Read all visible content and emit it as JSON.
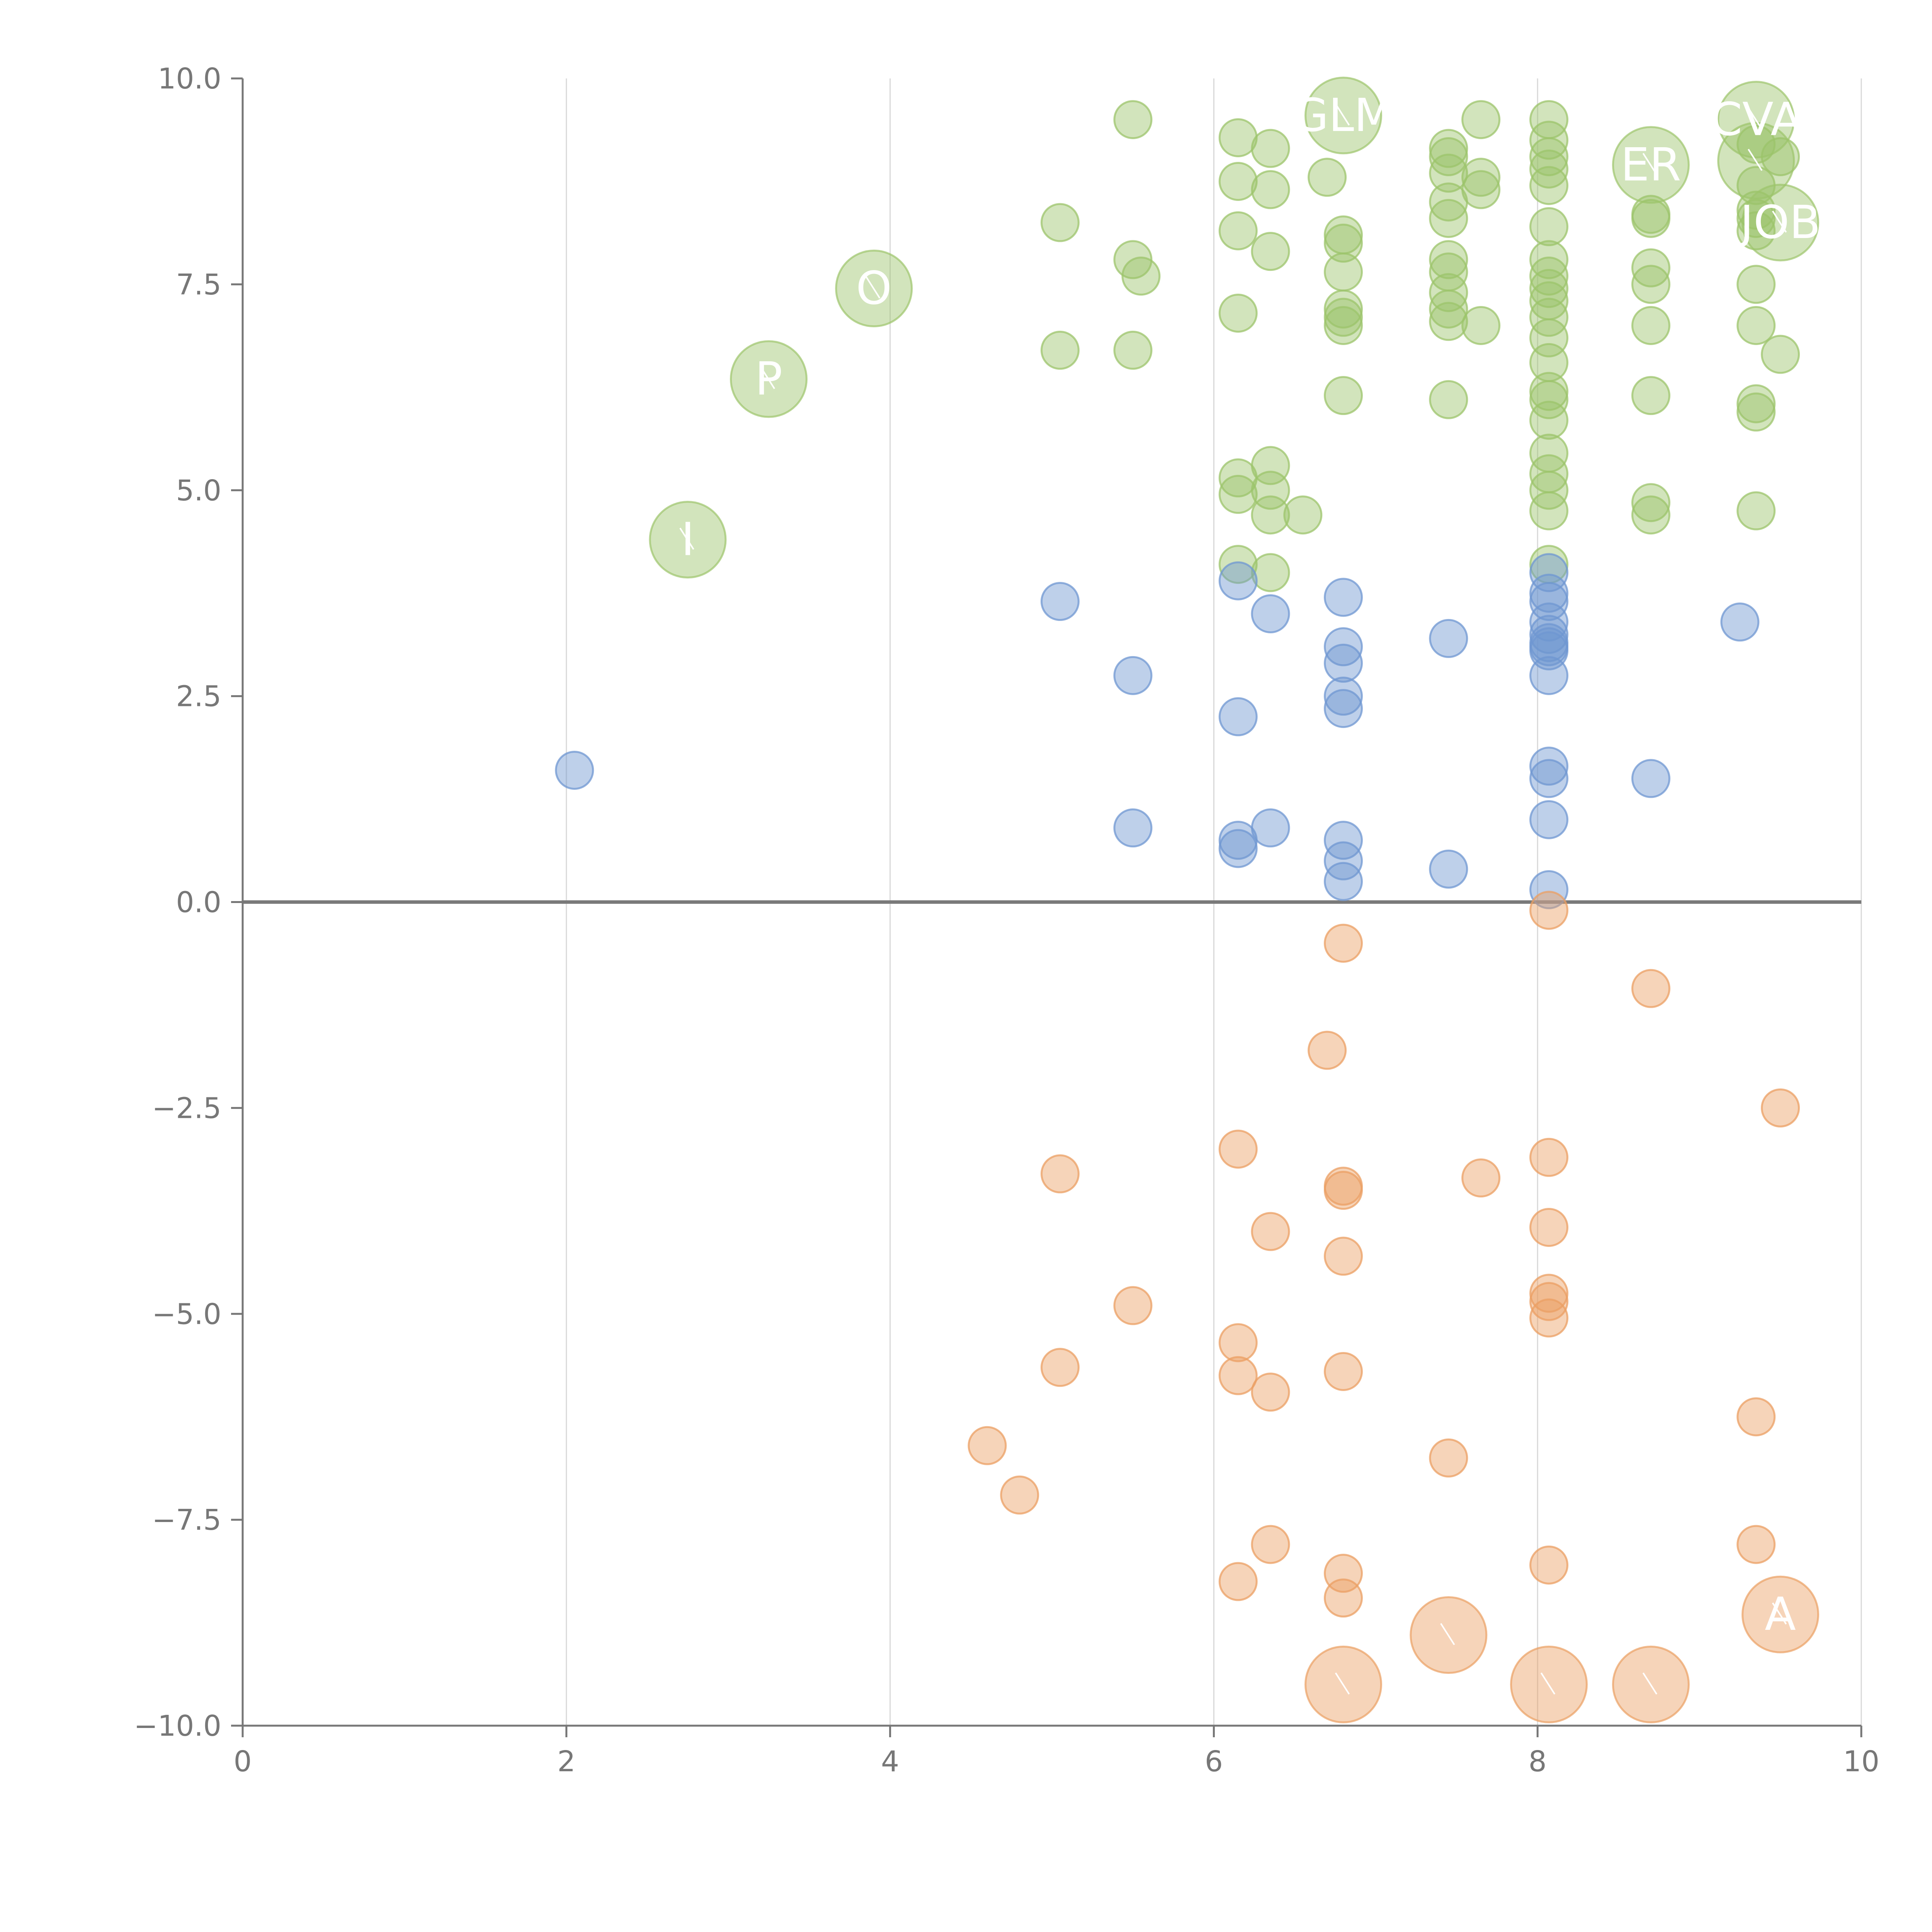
{
  "chart_data": {
    "type": "scatter",
    "title": "",
    "xlabel": "",
    "ylabel": "",
    "xlim": [
      0,
      10
    ],
    "ylim": [
      -10,
      10
    ],
    "x_ticks": [
      0,
      2,
      4,
      6,
      8,
      10
    ],
    "x_tick_labels": [
      "0",
      "2",
      "4",
      "6",
      "8",
      "10"
    ],
    "y_ticks": [
      10,
      7.5,
      5,
      2.5,
      0,
      -2.5,
      -5,
      -7.5,
      -10
    ],
    "y_tick_labels": [
      "10.0",
      "7.5",
      "5.0",
      "2.5",
      "0.0",
      "−2.5",
      "−5.0",
      "−7.5",
      "−10.0"
    ],
    "vertical_grid": true,
    "zero_line": true,
    "colors": {
      "green": "#9cc46b",
      "blue": "#6f97d1",
      "orange": "#eb9f63",
      "zero_line": "#7a7a7a",
      "grid": "#d8d8d8",
      "axis": "#777777"
    },
    "series": [
      {
        "color": "green",
        "points": [
          [
            5.5,
            9.5
          ],
          [
            6.15,
            9.28
          ],
          [
            6.35,
            9.15
          ],
          [
            6.7,
            8.8
          ],
          [
            7.45,
            9.15
          ],
          [
            7.45,
            9.05
          ],
          [
            7.45,
            8.85
          ],
          [
            7.65,
            9.5
          ],
          [
            7.65,
            8.8
          ],
          [
            7.65,
            8.65
          ],
          [
            8.07,
            9.5
          ],
          [
            8.07,
            9.25
          ],
          [
            8.07,
            9.05
          ],
          [
            8.07,
            8.9
          ],
          [
            8.07,
            8.7
          ],
          [
            8.07,
            8.2
          ],
          [
            8.07,
            7.8
          ],
          [
            8.07,
            7.6
          ],
          [
            8.07,
            7.45
          ],
          [
            8.07,
            7.3
          ],
          [
            8.07,
            7.1
          ],
          [
            8.07,
            6.85
          ],
          [
            8.07,
            6.55
          ],
          [
            8.07,
            6.2
          ],
          [
            8.07,
            6.1
          ],
          [
            8.07,
            5.85
          ],
          [
            8.07,
            5.45
          ],
          [
            8.07,
            5.2
          ],
          [
            8.07,
            5.0
          ],
          [
            8.07,
            4.75
          ],
          [
            8.07,
            4.1
          ],
          [
            6.15,
            8.75
          ],
          [
            6.35,
            8.65
          ],
          [
            6.15,
            8.15
          ],
          [
            6.35,
            7.9
          ],
          [
            5.05,
            8.25
          ],
          [
            5.5,
            7.8
          ],
          [
            5.55,
            7.6
          ],
          [
            6.15,
            7.15
          ],
          [
            5.05,
            6.7
          ],
          [
            5.5,
            6.7
          ],
          [
            6.8,
            8.1
          ],
          [
            6.8,
            8.0
          ],
          [
            6.8,
            7.65
          ],
          [
            6.8,
            7.2
          ],
          [
            6.8,
            7.1
          ],
          [
            6.8,
            7.0
          ],
          [
            6.8,
            6.15
          ],
          [
            7.45,
            8.5
          ],
          [
            7.45,
            8.3
          ],
          [
            7.45,
            7.8
          ],
          [
            7.45,
            7.65
          ],
          [
            7.45,
            7.4
          ],
          [
            7.45,
            7.2
          ],
          [
            7.45,
            7.05
          ],
          [
            7.65,
            7.0
          ],
          [
            7.45,
            6.1
          ],
          [
            8.7,
            8.35
          ],
          [
            8.7,
            8.3
          ],
          [
            8.7,
            7.7
          ],
          [
            8.7,
            7.5
          ],
          [
            8.7,
            7.0
          ],
          [
            8.7,
            6.15
          ],
          [
            9.35,
            9.2
          ],
          [
            9.35,
            8.7
          ],
          [
            9.35,
            8.4
          ],
          [
            9.35,
            8.3
          ],
          [
            9.35,
            8.15
          ],
          [
            9.35,
            7.5
          ],
          [
            9.35,
            7.0
          ],
          [
            9.35,
            6.05
          ],
          [
            9.35,
            5.95
          ],
          [
            9.5,
            6.65
          ],
          [
            9.5,
            9.05
          ],
          [
            6.15,
            5.15
          ],
          [
            6.15,
            4.95
          ],
          [
            6.35,
            5.3
          ],
          [
            6.35,
            5.0
          ],
          [
            6.35,
            4.7
          ],
          [
            6.55,
            4.7
          ],
          [
            6.15,
            4.1
          ],
          [
            6.35,
            4.0
          ],
          [
            8.7,
            4.85
          ],
          [
            8.7,
            4.7
          ],
          [
            9.35,
            4.75
          ]
        ],
        "big_points": [
          [
            6.8,
            9.55,
            "GLM"
          ],
          [
            8.7,
            8.95,
            "ER"
          ],
          [
            9.35,
            9.5,
            "CVA"
          ],
          [
            9.35,
            9.0,
            ""
          ],
          [
            9.5,
            8.25,
            "JOB"
          ],
          [
            3.9,
            7.45,
            "O"
          ],
          [
            3.25,
            6.35,
            "P"
          ],
          [
            2.75,
            4.4,
            "I"
          ]
        ]
      },
      {
        "color": "blue",
        "points": [
          [
            2.05,
            1.6
          ],
          [
            5.05,
            3.65
          ],
          [
            5.5,
            2.75
          ],
          [
            5.5,
            0.9
          ],
          [
            6.15,
            3.9
          ],
          [
            6.15,
            2.25
          ],
          [
            6.15,
            0.75
          ],
          [
            6.15,
            0.65
          ],
          [
            6.35,
            3.5
          ],
          [
            6.35,
            0.9
          ],
          [
            6.8,
            3.7
          ],
          [
            6.8,
            3.1
          ],
          [
            6.8,
            2.9
          ],
          [
            6.8,
            2.5
          ],
          [
            6.8,
            2.35
          ],
          [
            6.8,
            0.75
          ],
          [
            6.8,
            0.5
          ],
          [
            6.8,
            0.25
          ],
          [
            7.45,
            3.2
          ],
          [
            7.45,
            0.4
          ],
          [
            8.07,
            4.0
          ],
          [
            8.07,
            3.75
          ],
          [
            8.07,
            3.65
          ],
          [
            8.07,
            3.4
          ],
          [
            8.07,
            3.25
          ],
          [
            8.07,
            3.15
          ],
          [
            8.07,
            3.1
          ],
          [
            8.07,
            3.05
          ],
          [
            8.07,
            2.75
          ],
          [
            8.07,
            1.65
          ],
          [
            8.07,
            1.5
          ],
          [
            8.07,
            1.0
          ],
          [
            8.07,
            0.15
          ],
          [
            8.7,
            1.5
          ],
          [
            9.25,
            3.4
          ]
        ],
        "big_points": []
      },
      {
        "color": "orange",
        "points": [
          [
            8.07,
            -0.1
          ],
          [
            6.8,
            -0.5
          ],
          [
            8.7,
            -1.05
          ],
          [
            6.7,
            -1.8
          ],
          [
            9.5,
            -2.5
          ],
          [
            6.15,
            -3.0
          ],
          [
            5.05,
            -3.3
          ],
          [
            6.8,
            -3.45
          ],
          [
            6.8,
            -3.5
          ],
          [
            7.65,
            -3.35
          ],
          [
            8.07,
            -3.1
          ],
          [
            6.35,
            -4.0
          ],
          [
            8.07,
            -3.95
          ],
          [
            6.8,
            -4.3
          ],
          [
            8.07,
            -4.75
          ],
          [
            8.07,
            -4.85
          ],
          [
            8.07,
            -5.05
          ],
          [
            5.5,
            -4.9
          ],
          [
            6.15,
            -5.35
          ],
          [
            5.05,
            -5.65
          ],
          [
            6.15,
            -5.75
          ],
          [
            6.35,
            -5.95
          ],
          [
            6.8,
            -5.7
          ],
          [
            9.35,
            -6.25
          ],
          [
            4.6,
            -6.6
          ],
          [
            4.8,
            -7.2
          ],
          [
            7.45,
            -6.75
          ],
          [
            6.35,
            -7.8
          ],
          [
            9.35,
            -7.8
          ],
          [
            6.15,
            -8.25
          ],
          [
            6.8,
            -8.15
          ],
          [
            6.8,
            -8.45
          ],
          [
            8.07,
            -8.05
          ]
        ],
        "big_points": [
          [
            9.5,
            -8.65,
            "A"
          ],
          [
            7.45,
            -8.9,
            ""
          ],
          [
            6.8,
            -9.5,
            ""
          ],
          [
            8.07,
            -9.5,
            ""
          ],
          [
            8.7,
            -9.5,
            ""
          ]
        ]
      }
    ]
  }
}
